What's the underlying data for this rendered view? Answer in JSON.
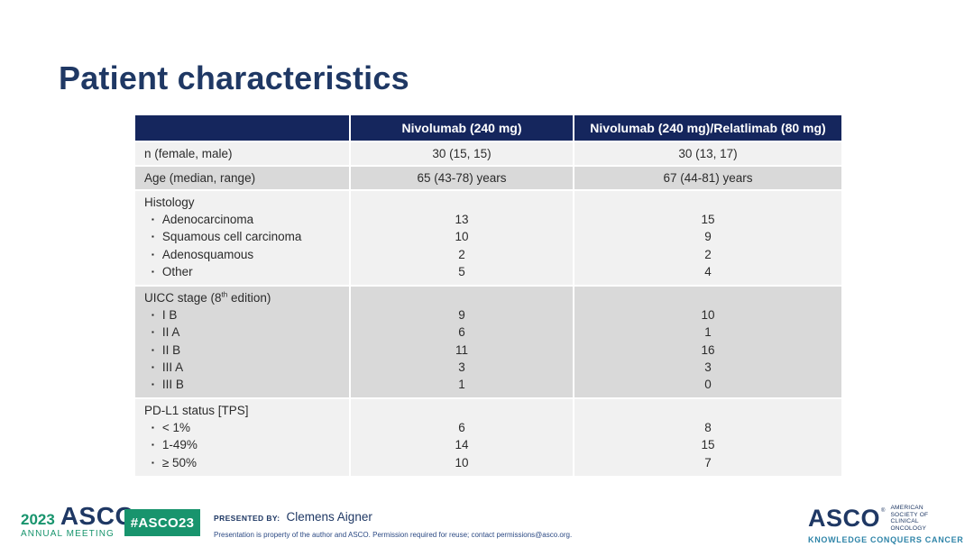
{
  "slide": {
    "title": "Patient characteristics"
  },
  "colors": {
    "navy": "#1F3864",
    "header_bg": "#15265D",
    "row_light": "#F1F1F1",
    "row_dark": "#D9D9D9",
    "green": "#18946D",
    "teal": "#2E84A8",
    "table_text": "#2B2B2B"
  },
  "table": {
    "bullet": "▪",
    "header": {
      "col0": "",
      "col1": "Nivolumab (240 mg)",
      "col2": "Nivolumab (240 mg)/Relatlimab (80 mg)"
    },
    "sections": [
      {
        "type": "row",
        "shade": "light",
        "label": "n (female, male)",
        "values": [
          "30 (15, 15)",
          "30 (13, 17)"
        ]
      },
      {
        "type": "row",
        "shade": "dark",
        "label": "Age (median, range)",
        "values": [
          "65 (43-78) years",
          "67 (44-81) years"
        ]
      },
      {
        "type": "group",
        "shade": "light",
        "label": "Histology",
        "items": [
          {
            "label": "Adenocarcinoma",
            "values": [
              "13",
              "15"
            ]
          },
          {
            "label": "Squamous cell carcinoma",
            "values": [
              "10",
              "9"
            ]
          },
          {
            "label": "Adenosquamous",
            "values": [
              "2",
              "2"
            ]
          },
          {
            "label": "Other",
            "values": [
              "5",
              "4"
            ]
          }
        ]
      },
      {
        "type": "group",
        "shade": "dark",
        "label": "UICC stage (8th edition)",
        "label_parts": {
          "pre": "UICC stage (8",
          "sup": "th",
          "post": " edition)"
        },
        "items": [
          {
            "label": "I B",
            "values": [
              "9",
              "10"
            ]
          },
          {
            "label": "II A",
            "values": [
              "6",
              "1"
            ]
          },
          {
            "label": "II B",
            "values": [
              "11",
              "16"
            ]
          },
          {
            "label": "III A",
            "values": [
              "3",
              "3"
            ]
          },
          {
            "label": "III B",
            "values": [
              "1",
              "0"
            ]
          }
        ]
      },
      {
        "type": "group",
        "shade": "light",
        "label": "PD-L1 status [TPS]",
        "items": [
          {
            "label": "< 1%",
            "values": [
              "6",
              "8"
            ]
          },
          {
            "label": "1-49%",
            "values": [
              "14",
              "15"
            ]
          },
          {
            "label": "≥ 50%",
            "values": [
              "10",
              "7"
            ]
          }
        ]
      }
    ]
  },
  "footer": {
    "meeting_logo": {
      "year": "2023",
      "org": "ASCO",
      "reg": "®",
      "line2": "ANNUAL MEETING"
    },
    "hashtag_badge": "#ASCO23",
    "presented_by_label": "PRESENTED BY:",
    "presenter_name": "Clemens Aigner",
    "disclaimer": "Presentation is property of the author and ASCO. Permission required for reuse; contact permissions@asco.org.",
    "asco_logo": {
      "org": "ASCO",
      "reg": "®",
      "society_line1": "AMERICAN SOCIETY OF",
      "society_line2": "CLINICAL ONCOLOGY",
      "tagline": "KNOWLEDGE CONQUERS CANCER"
    }
  }
}
